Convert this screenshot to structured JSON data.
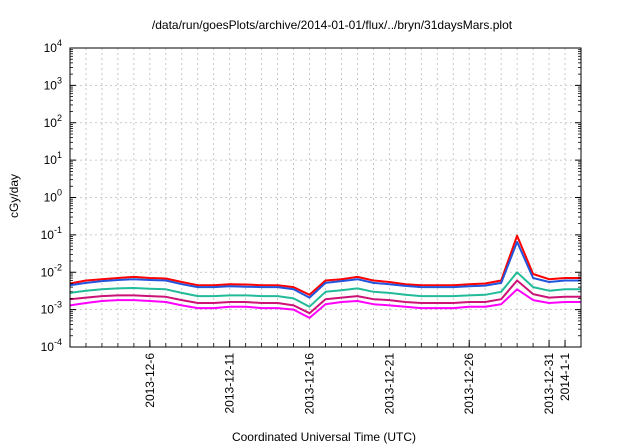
{
  "chart_data": {
    "type": "line",
    "title": "/data/run/goesPlots/archive/2014-01-01/flux/../bryn/31daysMars.plot",
    "xlabel": "Coordinated Universal Time (UTC)",
    "ylabel": "cGy/day",
    "yscale": "log",
    "ylim": [
      0.0001,
      10000
    ],
    "xlim": [
      "2013-12-01",
      "2014-01-02"
    ],
    "grid": true,
    "y_ticks": [
      {
        "base": "10",
        "exp": "-4",
        "value": 0.0001
      },
      {
        "base": "10",
        "exp": "-3",
        "value": 0.001
      },
      {
        "base": "10",
        "exp": "-2",
        "value": 0.01
      },
      {
        "base": "10",
        "exp": "-1",
        "value": 0.1
      },
      {
        "base": "10",
        "exp": "0",
        "value": 1
      },
      {
        "base": "10",
        "exp": "1",
        "value": 10
      },
      {
        "base": "10",
        "exp": "2",
        "value": 100
      },
      {
        "base": "10",
        "exp": "3",
        "value": 1000
      },
      {
        "base": "10",
        "exp": "4",
        "value": 10000
      }
    ],
    "x_ticks": [
      {
        "label": "2013-12-6",
        "date": "2013-12-06"
      },
      {
        "label": "2013-12-11",
        "date": "2013-12-11"
      },
      {
        "label": "2013-12-16",
        "date": "2013-12-16"
      },
      {
        "label": "2013-12-21",
        "date": "2013-12-21"
      },
      {
        "label": "2013-12-26",
        "date": "2013-12-26"
      },
      {
        "label": "2013-12-31",
        "date": "2013-12-31"
      },
      {
        "label": "2014-1-1",
        "date": "2014-01-01"
      }
    ],
    "x": [
      "2013-12-01",
      "2013-12-02",
      "2013-12-03",
      "2013-12-04",
      "2013-12-05",
      "2013-12-06",
      "2013-12-07",
      "2013-12-08",
      "2013-12-09",
      "2013-12-10",
      "2013-12-11",
      "2013-12-12",
      "2013-12-13",
      "2013-12-14",
      "2013-12-15",
      "2013-12-16",
      "2013-12-17",
      "2013-12-18",
      "2013-12-19",
      "2013-12-20",
      "2013-12-21",
      "2013-12-22",
      "2013-12-23",
      "2013-12-24",
      "2013-12-25",
      "2013-12-26",
      "2013-12-27",
      "2013-12-28",
      "2013-12-29",
      "2013-12-30",
      "2013-12-31",
      "2014-01-01",
      "2014-01-02"
    ],
    "series": [
      {
        "color": "#ff0000",
        "values": [
          0.005,
          0.006,
          0.0065,
          0.007,
          0.0075,
          0.007,
          0.0068,
          0.0055,
          0.0045,
          0.0045,
          0.0048,
          0.0047,
          0.0045,
          0.0045,
          0.004,
          0.0025,
          0.006,
          0.0065,
          0.0075,
          0.006,
          0.0055,
          0.0048,
          0.0045,
          0.0045,
          0.0045,
          0.0048,
          0.005,
          0.006,
          0.095,
          0.009,
          0.0065,
          0.007,
          0.007
        ]
      },
      {
        "color": "#2255dd",
        "values": [
          0.0045,
          0.0052,
          0.0058,
          0.0062,
          0.0065,
          0.0062,
          0.006,
          0.0048,
          0.004,
          0.004,
          0.0042,
          0.0041,
          0.004,
          0.004,
          0.0035,
          0.0021,
          0.0052,
          0.0058,
          0.0065,
          0.0052,
          0.0048,
          0.0043,
          0.004,
          0.004,
          0.004,
          0.0042,
          0.0044,
          0.0052,
          0.065,
          0.007,
          0.0055,
          0.006,
          0.006
        ]
      },
      {
        "color": "#22bb99",
        "values": [
          0.0028,
          0.0032,
          0.0035,
          0.0037,
          0.0038,
          0.0036,
          0.0035,
          0.0028,
          0.0023,
          0.0023,
          0.0024,
          0.0024,
          0.0023,
          0.0023,
          0.002,
          0.0012,
          0.003,
          0.0033,
          0.0037,
          0.003,
          0.0028,
          0.0025,
          0.0023,
          0.0023,
          0.0023,
          0.0024,
          0.0025,
          0.003,
          0.01,
          0.004,
          0.0032,
          0.0035,
          0.0035
        ]
      },
      {
        "color": "#cc1177",
        "values": [
          0.0019,
          0.0021,
          0.0023,
          0.0024,
          0.0024,
          0.0023,
          0.0022,
          0.0018,
          0.0015,
          0.0015,
          0.0016,
          0.0016,
          0.0015,
          0.0015,
          0.0013,
          0.0008,
          0.0019,
          0.0021,
          0.0023,
          0.0019,
          0.0018,
          0.0016,
          0.0015,
          0.0015,
          0.0015,
          0.0016,
          0.0016,
          0.0019,
          0.006,
          0.0026,
          0.0021,
          0.0022,
          0.0022
        ]
      },
      {
        "color": "#ff00ff",
        "values": [
          0.0013,
          0.0015,
          0.0017,
          0.0018,
          0.0018,
          0.0017,
          0.0016,
          0.0013,
          0.0011,
          0.0011,
          0.0012,
          0.0012,
          0.0011,
          0.0011,
          0.001,
          0.0006,
          0.0014,
          0.0016,
          0.0017,
          0.0014,
          0.0013,
          0.0012,
          0.0011,
          0.0011,
          0.0011,
          0.0012,
          0.0012,
          0.0014,
          0.0035,
          0.0018,
          0.0015,
          0.0016,
          0.0016
        ]
      }
    ]
  }
}
